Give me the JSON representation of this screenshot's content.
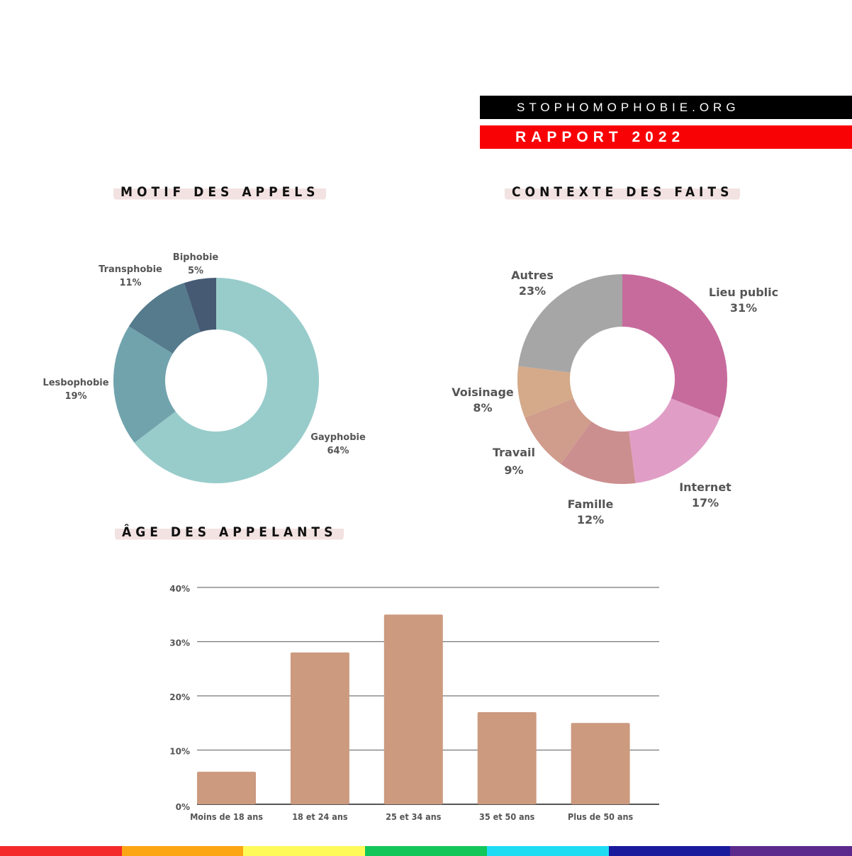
{
  "header": {
    "site": "STOPHOMOPHOBIE.ORG",
    "report": "RAPPORT 2022"
  },
  "sections": {
    "motif": "MOTIF DES APPELS",
    "contexte": "CONTEXTE DES FAITS",
    "age": "ÂGE DES APPELANTS"
  },
  "chart_data": [
    {
      "type": "pie",
      "donut": true,
      "title": "MOTIF DES APPELS",
      "labels": [
        "Gayphobie",
        "Lesbophobie",
        "Transphobie",
        "Biphobie"
      ],
      "values": [
        64,
        19,
        11,
        5
      ],
      "value_labels": [
        "64%",
        "19%",
        "11%",
        "5%"
      ],
      "colors": [
        "#98cccb",
        "#71a3ad",
        "#557b8d",
        "#465a74"
      ]
    },
    {
      "type": "pie",
      "donut": true,
      "title": "CONTEXTE DES FAITS",
      "labels": [
        "Lieu public",
        "Internet",
        "Famille",
        "Travail",
        "Voisinage",
        "Autres"
      ],
      "values": [
        31,
        17,
        12,
        9,
        8,
        23
      ],
      "value_labels": [
        "31%",
        "17%",
        "12%",
        "9%",
        "8%",
        "23%"
      ],
      "colors": [
        "#c76b9d",
        "#e09ec6",
        "#cc8f90",
        "#d09c8c",
        "#d4aa8a",
        "#a6a6a6"
      ]
    },
    {
      "type": "bar",
      "title": "ÂGE DES APPELANTS",
      "categories": [
        "Moins de 18 ans",
        "18 et 24 ans",
        "25 et 34 ans",
        "35 et 50 ans",
        "Plus de 50 ans"
      ],
      "values": [
        6,
        28,
        35,
        17,
        15
      ],
      "ylim": [
        0,
        40
      ],
      "yticks": [
        "0%",
        "10%",
        "20%",
        "30%",
        "40%"
      ],
      "color": "#cc9a7f",
      "grid": true
    }
  ],
  "rainbow": [
    "#f42a2a",
    "#fca614",
    "#fdfa5a",
    "#13c65a",
    "#1fdcf3",
    "#1a1a9c",
    "#5b2a8c"
  ]
}
